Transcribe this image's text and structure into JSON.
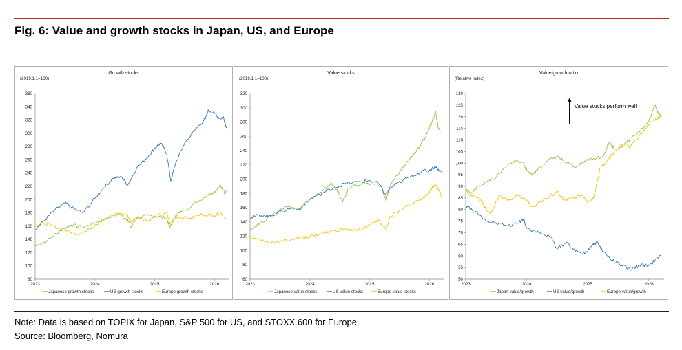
{
  "header": {
    "title": "Fig. 6: Value and growth stocks in Japan, US, and Europe"
  },
  "footer": {
    "note": "Note: Data is based on TOPIX for Japan, S&P 500 for US, and STOXX 600 for Europe.",
    "source": "Source: Bloomberg, Nomura"
  },
  "colors": {
    "japan": "#8cc63f",
    "us": "#2e75b6",
    "europe": "#f5c400",
    "accent": "#c0282d"
  },
  "chart_data": [
    {
      "type": "line",
      "title": "Growth stocks",
      "unit_label": "(2019.1.1=100)",
      "ylim": [
        80,
        360
      ],
      "yticks": [
        80,
        100,
        120,
        140,
        160,
        180,
        200,
        220,
        240,
        260,
        280,
        300,
        320,
        340,
        360
      ],
      "xlim": [
        2023,
        2026.25
      ],
      "xticks": [
        2023,
        2024,
        2025,
        2026
      ],
      "xtick_labels": [
        "2023",
        "2024",
        "2025",
        "2026"
      ],
      "legend_position": "bottom",
      "grid": false,
      "series": [
        {
          "name": "Japanese growth stocks",
          "color": "#8cc63f",
          "points": [
            [
              2023.0,
              130
            ],
            [
              2023.2,
              138
            ],
            [
              2023.4,
              152
            ],
            [
              2023.6,
              162
            ],
            [
              2023.8,
              158
            ],
            [
              2024.0,
              165
            ],
            [
              2024.2,
              172
            ],
            [
              2024.4,
              178
            ],
            [
              2024.55,
              170
            ],
            [
              2024.6,
              158
            ],
            [
              2024.7,
              172
            ],
            [
              2024.9,
              176
            ],
            [
              2025.0,
              175
            ],
            [
              2025.2,
              172
            ],
            [
              2025.25,
              158
            ],
            [
              2025.35,
              176
            ],
            [
              2025.5,
              184
            ],
            [
              2025.7,
              196
            ],
            [
              2025.9,
              208
            ],
            [
              2026.0,
              212
            ],
            [
              2026.1,
              222
            ],
            [
              2026.15,
              210
            ],
            [
              2026.2,
              214
            ]
          ]
        },
        {
          "name": "US growth stocks",
          "color": "#2e75b6",
          "points": [
            [
              2023.0,
              155
            ],
            [
              2023.15,
              168
            ],
            [
              2023.3,
              182
            ],
            [
              2023.5,
              195
            ],
            [
              2023.6,
              188
            ],
            [
              2023.8,
              180
            ],
            [
              2024.0,
              202
            ],
            [
              2024.15,
              218
            ],
            [
              2024.3,
              232
            ],
            [
              2024.45,
              234
            ],
            [
              2024.55,
              222
            ],
            [
              2024.7,
              248
            ],
            [
              2024.9,
              266
            ],
            [
              2025.0,
              278
            ],
            [
              2025.1,
              285
            ],
            [
              2025.2,
              270
            ],
            [
              2025.27,
              228
            ],
            [
              2025.35,
              255
            ],
            [
              2025.5,
              285
            ],
            [
              2025.7,
              308
            ],
            [
              2025.85,
              322
            ],
            [
              2025.9,
              335
            ],
            [
              2026.0,
              330
            ],
            [
              2026.1,
              322
            ],
            [
              2026.15,
              325
            ],
            [
              2026.2,
              308
            ]
          ]
        },
        {
          "name": "Europe growth stocks",
          "color": "#f5c400",
          "points": [
            [
              2023.0,
              162
            ],
            [
              2023.15,
              164
            ],
            [
              2023.3,
              160
            ],
            [
              2023.5,
              154
            ],
            [
              2023.7,
              148
            ],
            [
              2023.85,
              152
            ],
            [
              2024.0,
              162
            ],
            [
              2024.2,
              172
            ],
            [
              2024.4,
              180
            ],
            [
              2024.55,
              176
            ],
            [
              2024.6,
              166
            ],
            [
              2024.7,
              174
            ],
            [
              2024.9,
              168
            ],
            [
              2025.0,
              174
            ],
            [
              2025.2,
              180
            ],
            [
              2025.27,
              160
            ],
            [
              2025.35,
              174
            ],
            [
              2025.6,
              172
            ],
            [
              2025.8,
              178
            ],
            [
              2026.0,
              176
            ],
            [
              2026.1,
              180
            ],
            [
              2026.2,
              170
            ]
          ]
        }
      ]
    },
    {
      "type": "line",
      "title": "Value stocks",
      "unit_label": "(2019.1.1=100)",
      "ylim": [
        60,
        320
      ],
      "yticks": [
        60,
        80,
        100,
        120,
        140,
        160,
        180,
        200,
        220,
        240,
        260,
        280,
        300,
        320
      ],
      "xlim": [
        2023,
        2026.25
      ],
      "xticks": [
        2023,
        2024,
        2025,
        2026
      ],
      "xtick_labels": [
        "2023",
        "2024",
        "2025",
        "2026"
      ],
      "legend_position": "bottom",
      "grid": false,
      "series": [
        {
          "name": "Japanese value stocks",
          "color": "#8cc63f",
          "points": [
            [
              2023.0,
              130
            ],
            [
              2023.2,
              140
            ],
            [
              2023.4,
              152
            ],
            [
              2023.6,
              162
            ],
            [
              2023.8,
              158
            ],
            [
              2024.0,
              172
            ],
            [
              2024.2,
              182
            ],
            [
              2024.35,
              194
            ],
            [
              2024.45,
              186
            ],
            [
              2024.55,
              168
            ],
            [
              2024.65,
              188
            ],
            [
              2024.9,
              196
            ],
            [
              2025.0,
              192
            ],
            [
              2025.2,
              190
            ],
            [
              2025.27,
              170
            ],
            [
              2025.35,
              192
            ],
            [
              2025.5,
              210
            ],
            [
              2025.7,
              232
            ],
            [
              2025.85,
              246
            ],
            [
              2025.95,
              262
            ],
            [
              2026.05,
              282
            ],
            [
              2026.1,
              296
            ],
            [
              2026.15,
              272
            ],
            [
              2026.2,
              268
            ]
          ]
        },
        {
          "name": "US value stocks",
          "color": "#2e75b6",
          "points": [
            [
              2023.0,
              145
            ],
            [
              2023.15,
              150
            ],
            [
              2023.3,
              148
            ],
            [
              2023.5,
              154
            ],
            [
              2023.7,
              160
            ],
            [
              2023.85,
              158
            ],
            [
              2024.0,
              172
            ],
            [
              2024.2,
              180
            ],
            [
              2024.4,
              188
            ],
            [
              2024.6,
              194
            ],
            [
              2024.8,
              196
            ],
            [
              2025.0,
              198
            ],
            [
              2025.15,
              194
            ],
            [
              2025.27,
              178
            ],
            [
              2025.35,
              188
            ],
            [
              2025.55,
              198
            ],
            [
              2025.75,
              206
            ],
            [
              2025.9,
              212
            ],
            [
              2026.0,
              212
            ],
            [
              2026.1,
              218
            ],
            [
              2026.2,
              210
            ]
          ]
        },
        {
          "name": "Europe value stocks",
          "color": "#f5c400",
          "points": [
            [
              2023.0,
              118
            ],
            [
              2023.15,
              116
            ],
            [
              2023.3,
              112
            ],
            [
              2023.5,
              112
            ],
            [
              2023.7,
              116
            ],
            [
              2023.9,
              118
            ],
            [
              2024.0,
              120
            ],
            [
              2024.2,
              124
            ],
            [
              2024.4,
              128
            ],
            [
              2024.6,
              130
            ],
            [
              2024.8,
              128
            ],
            [
              2025.0,
              136
            ],
            [
              2025.15,
              142
            ],
            [
              2025.27,
              130
            ],
            [
              2025.35,
              148
            ],
            [
              2025.55,
              158
            ],
            [
              2025.75,
              168
            ],
            [
              2025.9,
              174
            ],
            [
              2026.0,
              182
            ],
            [
              2026.1,
              194
            ],
            [
              2026.15,
              186
            ],
            [
              2026.2,
              176
            ]
          ]
        }
      ]
    },
    {
      "type": "line",
      "title": "Value/growth ratio",
      "unit_label": "(Relative index)",
      "ylim": [
        50,
        130
      ],
      "yticks": [
        50,
        55,
        60,
        65,
        70,
        75,
        80,
        85,
        90,
        95,
        100,
        105,
        110,
        115,
        120,
        125,
        130
      ],
      "xlim": [
        2023,
        2026.25
      ],
      "xticks": [
        2023,
        2024,
        2025,
        2026
      ],
      "xtick_labels": [
        "2023",
        "2024",
        "2025",
        "2026"
      ],
      "legend_position": "bottom",
      "grid": false,
      "annotation": {
        "text": "Value stocks perform well",
        "x": 2024.7,
        "y_from": 117,
        "y_to": 128
      },
      "series": [
        {
          "name": "Japan value/growth",
          "color": "#8cc63f",
          "points": [
            [
              2023.0,
              89
            ],
            [
              2023.1,
              87
            ],
            [
              2023.2,
              90
            ],
            [
              2023.35,
              92
            ],
            [
              2023.5,
              94
            ],
            [
              2023.65,
              98
            ],
            [
              2023.8,
              101
            ],
            [
              2023.95,
              100
            ],
            [
              2024.0,
              97
            ],
            [
              2024.1,
              95
            ],
            [
              2024.2,
              98
            ],
            [
              2024.35,
              101
            ],
            [
              2024.5,
              103
            ],
            [
              2024.65,
              100
            ],
            [
              2024.8,
              98
            ],
            [
              2024.95,
              101
            ],
            [
              2025.1,
              102
            ],
            [
              2025.25,
              103
            ],
            [
              2025.35,
              109
            ],
            [
              2025.45,
              106
            ],
            [
              2025.6,
              108
            ],
            [
              2025.75,
              112
            ],
            [
              2025.9,
              115
            ],
            [
              2026.0,
              118
            ],
            [
              2026.1,
              125
            ],
            [
              2026.15,
              122
            ],
            [
              2026.2,
              120
            ]
          ]
        },
        {
          "name": "US value/growth",
          "color": "#2e75b6",
          "points": [
            [
              2023.0,
              82
            ],
            [
              2023.15,
              79
            ],
            [
              2023.3,
              76
            ],
            [
              2023.5,
              74
            ],
            [
              2023.7,
              73
            ],
            [
              2023.85,
              74
            ],
            [
              2023.95,
              76
            ],
            [
              2024.0,
              72
            ],
            [
              2024.2,
              70
            ],
            [
              2024.4,
              68
            ],
            [
              2024.5,
              63
            ],
            [
              2024.65,
              66
            ],
            [
              2024.8,
              62
            ],
            [
              2024.95,
              61
            ],
            [
              2025.05,
              64
            ],
            [
              2025.15,
              66
            ],
            [
              2025.25,
              62
            ],
            [
              2025.4,
              58
            ],
            [
              2025.55,
              56
            ],
            [
              2025.7,
              54
            ],
            [
              2025.85,
              56
            ],
            [
              2026.0,
              56
            ],
            [
              2026.1,
              58
            ],
            [
              2026.2,
              60
            ]
          ]
        },
        {
          "name": "Europe value/growth",
          "color": "#f5c400",
          "points": [
            [
              2023.0,
              88
            ],
            [
              2023.1,
              86
            ],
            [
              2023.2,
              85
            ],
            [
              2023.3,
              82
            ],
            [
              2023.4,
              78
            ],
            [
              2023.55,
              86
            ],
            [
              2023.7,
              84
            ],
            [
              2023.85,
              86
            ],
            [
              2024.0,
              84
            ],
            [
              2024.1,
              81
            ],
            [
              2024.2,
              83
            ],
            [
              2024.35,
              85
            ],
            [
              2024.5,
              88
            ],
            [
              2024.6,
              84
            ],
            [
              2024.75,
              85
            ],
            [
              2024.9,
              86
            ],
            [
              2025.0,
              83
            ],
            [
              2025.1,
              85
            ],
            [
              2025.2,
              98
            ],
            [
              2025.3,
              100
            ],
            [
              2025.4,
              104
            ],
            [
              2025.55,
              108
            ],
            [
              2025.7,
              107
            ],
            [
              2025.85,
              112
            ],
            [
              2025.95,
              115
            ],
            [
              2026.05,
              118
            ],
            [
              2026.15,
              119
            ],
            [
              2026.2,
              121
            ]
          ]
        }
      ]
    }
  ]
}
